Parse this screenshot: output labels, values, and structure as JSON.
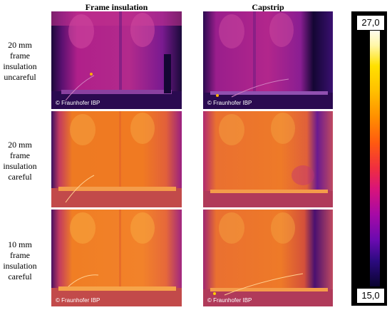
{
  "figure": {
    "columns": [
      "Frame insulation",
      "Capstrip"
    ],
    "rows": [
      {
        "label_lines": [
          "20 mm",
          "frame",
          "insulation",
          "uncareful"
        ]
      },
      {
        "label_lines": [
          "20 mm",
          "frame",
          "insulation",
          "careful"
        ]
      },
      {
        "label_lines": [
          "10 mm",
          "frame",
          "insulation",
          "careful"
        ]
      }
    ],
    "watermark": "© Fraunhofer IBP",
    "scale": {
      "max": "27,0",
      "min": "15,0"
    }
  },
  "colors": {
    "uncareful_panel": "#b0208a",
    "careful_panel": "#f07a22",
    "frame_dark": "#1a0a3a",
    "scale_top": "#fffdf0",
    "scale_bottom": "#0a0430"
  }
}
